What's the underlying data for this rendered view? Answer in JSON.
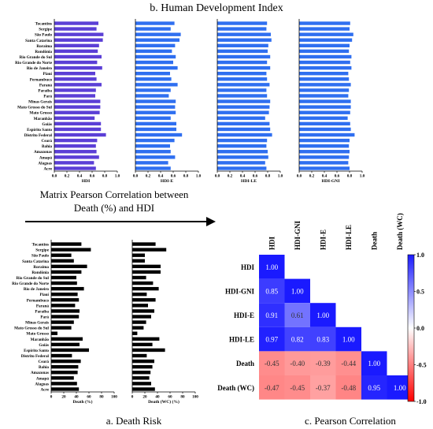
{
  "titles": {
    "hdi_section": "b. Human Development Index",
    "matrix_line1": "Matrix Pearson Correlation between",
    "matrix_line2": "Death (%) and HDI",
    "death_section": "a. Death Risk",
    "pearson_section": "c. Pearson Correlation"
  },
  "chart_data": [
    {
      "type": "bar",
      "orientation": "horizontal",
      "panel": "hdi",
      "color": "#5b3fd6",
      "categories": [
        "Tocantins",
        "Sergipe",
        "São Paulo",
        "Santa Catarina",
        "Roraima",
        "Rondônia",
        "Rio Grande do Sul",
        "Rio Grande do Norte",
        "Rio de Janeiro",
        "Piauí",
        "Pernambuco",
        "Paraná",
        "Paraíba",
        "Pará",
        "Minas Gerais",
        "Mato Grosso do Sul",
        "Mato Grosso",
        "Maranhão",
        "Goiás",
        "Espírito Santo",
        "Distrito Federal",
        "Ceará",
        "Bahia",
        "Amazonas",
        "Amapá",
        "Alagoas",
        "Acre"
      ],
      "values": [
        0.7,
        0.67,
        0.78,
        0.77,
        0.71,
        0.69,
        0.75,
        0.68,
        0.76,
        0.65,
        0.67,
        0.75,
        0.66,
        0.65,
        0.73,
        0.73,
        0.72,
        0.64,
        0.74,
        0.74,
        0.82,
        0.68,
        0.66,
        0.67,
        0.71,
        0.63,
        0.66
      ],
      "xlabel": "HDI",
      "xticks": [
        "0.0",
        "0.2",
        "0.4",
        "0.6",
        "0.8",
        "1.0"
      ],
      "xlim": [
        0,
        1
      ]
    },
    {
      "type": "bar",
      "orientation": "horizontal",
      "panel": "hdi-e",
      "color": "#2f6ff0",
      "categories": [
        "Tocantins",
        "Sergipe",
        "São Paulo",
        "Santa Catarina",
        "Roraima",
        "Rondônia",
        "Rio Grande do Sul",
        "Rio Grande do Norte",
        "Rio de Janeiro",
        "Piauí",
        "Pernambuco",
        "Paraná",
        "Paraíba",
        "Pará",
        "Minas Gerais",
        "Mato Grosso do Sul",
        "Mato Grosso",
        "Maranhão",
        "Goiás",
        "Espírito Santo",
        "Distrito Federal",
        "Ceará",
        "Bahia",
        "Amazonas",
        "Amapá",
        "Alagoas",
        "Acre"
      ],
      "values": [
        0.62,
        0.56,
        0.72,
        0.7,
        0.63,
        0.58,
        0.64,
        0.6,
        0.67,
        0.55,
        0.57,
        0.67,
        0.56,
        0.53,
        0.64,
        0.63,
        0.64,
        0.56,
        0.65,
        0.65,
        0.74,
        0.62,
        0.55,
        0.56,
        0.63,
        0.52,
        0.56
      ],
      "xlabel": "HDI-E",
      "xticks": [
        "0.0",
        "0.2",
        "0.4",
        "0.6",
        "0.8",
        "1.0"
      ],
      "xlim": [
        0,
        1
      ]
    },
    {
      "type": "bar",
      "orientation": "horizontal",
      "panel": "hdi-le",
      "color": "#2f6ff0",
      "categories": [
        "Tocantins",
        "Sergipe",
        "São Paulo",
        "Santa Catarina",
        "Roraima",
        "Rondônia",
        "Rio Grande do Sul",
        "Rio Grande do Norte",
        "Rio de Janeiro",
        "Piauí",
        "Pernambuco",
        "Paraná",
        "Paraíba",
        "Pará",
        "Minas Gerais",
        "Mato Grosso do Sul",
        "Mato Grosso",
        "Maranhão",
        "Goiás",
        "Espírito Santo",
        "Distrito Federal",
        "Ceará",
        "Bahia",
        "Amazonas",
        "Amapá",
        "Alagoas",
        "Acre"
      ],
      "values": [
        0.79,
        0.78,
        0.85,
        0.86,
        0.81,
        0.8,
        0.84,
        0.79,
        0.84,
        0.78,
        0.79,
        0.83,
        0.78,
        0.79,
        0.84,
        0.83,
        0.82,
        0.76,
        0.83,
        0.84,
        0.87,
        0.79,
        0.78,
        0.8,
        0.81,
        0.76,
        0.78
      ],
      "xlabel": "HDI-LE",
      "xticks": [
        "0.0",
        "0.2",
        "0.4",
        "0.6",
        "0.8",
        "1.0"
      ],
      "xlim": [
        0,
        1
      ]
    },
    {
      "type": "bar",
      "orientation": "horizontal",
      "panel": "hdi-gni",
      "color": "#2f6ff0",
      "categories": [
        "Tocantins",
        "Sergipe",
        "São Paulo",
        "Santa Catarina",
        "Roraima",
        "Rondônia",
        "Rio Grande do Sul",
        "Rio Grande do Norte",
        "Rio de Janeiro",
        "Piauí",
        "Pernambuco",
        "Paraná",
        "Paraíba",
        "Pará",
        "Minas Gerais",
        "Mato Grosso do Sul",
        "Mato Grosso",
        "Maranhão",
        "Goiás",
        "Espírito Santo",
        "Distrito Federal",
        "Ceará",
        "Bahia",
        "Amazonas",
        "Amapá",
        "Alagoas",
        "Acre"
      ],
      "values": [
        0.81,
        0.8,
        0.86,
        0.84,
        0.8,
        0.79,
        0.83,
        0.81,
        0.83,
        0.78,
        0.79,
        0.82,
        0.79,
        0.78,
        0.82,
        0.82,
        0.81,
        0.77,
        0.81,
        0.82,
        0.88,
        0.8,
        0.79,
        0.8,
        0.79,
        0.78,
        0.8
      ],
      "xlabel": "HDI-GNI",
      "xticks": [
        "0.0",
        "0.2",
        "0.4",
        "0.6",
        "0.8",
        "1.0"
      ],
      "xlim": [
        0,
        1
      ]
    },
    {
      "type": "bar",
      "orientation": "horizontal",
      "panel": "death",
      "color": "#000000",
      "categories": [
        "Tocantins",
        "Sergipe",
        "São Paulo",
        "Santa Catarina",
        "Roraima",
        "Rondônia",
        "Rio Grande do Sul",
        "Rio Grande do Norte",
        "Rio de Janeiro",
        "Piauí",
        "Pernambuco",
        "Paraná",
        "Paraíba",
        "Pará",
        "Minas Gerais",
        "Mato Grosso do Sul",
        "Mato Grosso",
        "Maranhão",
        "Goiás",
        "Espírito Santo",
        "Distrito Federal",
        "Ceará",
        "Bahia",
        "Amazonas",
        "Amapá",
        "Alagoas",
        "Acre"
      ],
      "values": [
        48,
        63,
        32,
        36,
        57,
        48,
        40,
        41,
        52,
        42,
        44,
        38,
        45,
        44,
        36,
        32,
        10,
        50,
        45,
        60,
        33,
        47,
        43,
        42,
        36,
        41,
        44
      ],
      "xlabel": "Death (%)",
      "xticks": [
        "0",
        "20",
        "40",
        "60",
        "80",
        "100"
      ],
      "xlim": [
        0,
        100
      ]
    },
    {
      "type": "bar",
      "orientation": "horizontal",
      "panel": "death-wc",
      "color": "#000000",
      "categories": [
        "Tocantins",
        "Sergipe",
        "São Paulo",
        "Santa Catarina",
        "Roraima",
        "Rondônia",
        "Rio Grande do Sul",
        "Rio Grande do Norte",
        "Rio de Janeiro",
        "Piauí",
        "Pernambuco",
        "Paraná",
        "Paraíba",
        "Pará",
        "Minas Gerais",
        "Mato Grosso do Sul",
        "Mato Grosso",
        "Maranhão",
        "Goiás",
        "Espírito Santo",
        "Distrito Federal",
        "Ceará",
        "Bahia",
        "Amazonas",
        "Amapá",
        "Alagoas",
        "Acre"
      ],
      "values": [
        37,
        54,
        20,
        20,
        45,
        45,
        22,
        33,
        42,
        23,
        37,
        25,
        35,
        30,
        22,
        18,
        8,
        43,
        32,
        52,
        23,
        35,
        32,
        29,
        27,
        30,
        36
      ],
      "xlabel": "Death (WC) (%)",
      "xticks": [
        "0",
        "20",
        "40",
        "60",
        "80",
        "100"
      ],
      "xlim": [
        0,
        100
      ]
    },
    {
      "type": "heatmap",
      "panel": "pearson",
      "labels": [
        "HDI",
        "HDI-GNI",
        "HDI-E",
        "HDI-LE",
        "Death",
        "Death (WC)"
      ],
      "matrix": [
        [
          1.0,
          null,
          null,
          null,
          null,
          null
        ],
        [
          0.85,
          1.0,
          null,
          null,
          null,
          null
        ],
        [
          0.91,
          0.61,
          1.0,
          null,
          null,
          null
        ],
        [
          0.97,
          0.82,
          0.83,
          1.0,
          null,
          null
        ],
        [
          -0.45,
          -0.4,
          -0.39,
          -0.44,
          1.0,
          null
        ],
        [
          -0.47,
          -0.45,
          -0.37,
          -0.48,
          0.95,
          1.0
        ]
      ],
      "cell_labels": [
        [
          "1.00",
          "",
          "",
          "",
          "",
          ""
        ],
        [
          "0.85",
          "1.00",
          "",
          "",
          "",
          ""
        ],
        [
          "0.91",
          "0.61",
          "1.00",
          "",
          "",
          ""
        ],
        [
          "0.97",
          "0.82",
          "0.83",
          "1.00",
          "",
          ""
        ],
        [
          "-0.45",
          "-0.40",
          "-0.39",
          "-0.44",
          "1.00",
          ""
        ],
        [
          "-0.47",
          "-0.45",
          "-0.37",
          "-0.48",
          "0.95",
          "1.00"
        ]
      ],
      "colorbar_ticks": [
        "1.0",
        "0.5",
        "0.0",
        "-0.5",
        "-1.0"
      ],
      "range": [
        -1,
        1
      ],
      "pos_color": "#1a1aff",
      "neg_color": "#ff0000"
    }
  ]
}
